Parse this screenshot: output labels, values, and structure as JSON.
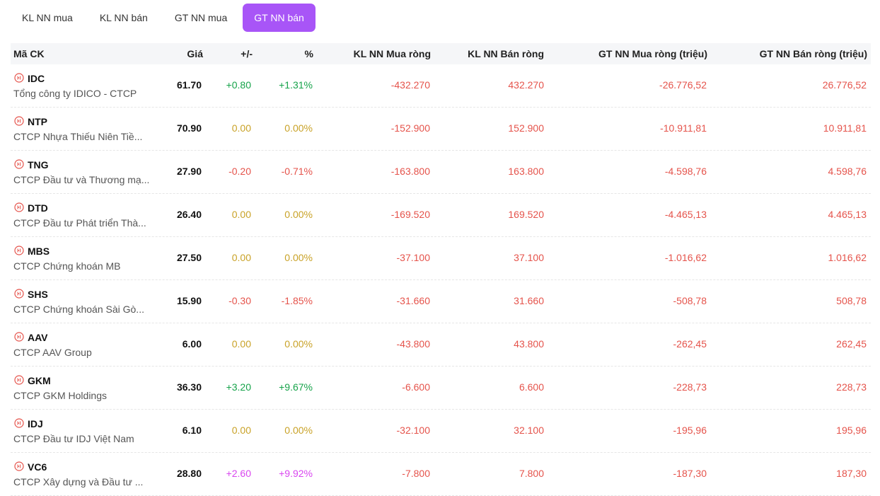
{
  "tabs": [
    {
      "label": "KL NN mua",
      "active": false
    },
    {
      "label": "KL NN bán",
      "active": false
    },
    {
      "label": "GT NN mua",
      "active": false
    },
    {
      "label": "GT NN bán",
      "active": true
    }
  ],
  "columns": {
    "symbol": "Mã CK",
    "price": "Giá",
    "change": "+/-",
    "percent": "%",
    "kl_buy": "KL NN Mua ròng",
    "kl_sell": "KL NN Bán ròng",
    "gt_buy": "GT NN Mua ròng (triệu)",
    "gt_sell": "GT NN Bán ròng (triệu)"
  },
  "colors": {
    "accent": "#a855f7",
    "up": "#16a34a",
    "reference": "#c9a227",
    "down": "#e5534b",
    "ceiling": "#d946ef"
  },
  "rows": [
    {
      "symbol": "IDC",
      "name": "Tổng công ty IDICO - CTCP",
      "price": "61.70",
      "change": "+0.80",
      "percent": "+1.31%",
      "trend": "up",
      "kl_buy": "-432.270",
      "kl_sell": "432.270",
      "gt_buy": "-26.776,52",
      "gt_sell": "26.776,52"
    },
    {
      "symbol": "NTP",
      "name": "CTCP Nhựa Thiếu Niên Tiề...",
      "price": "70.90",
      "change": "0.00",
      "percent": "0.00%",
      "trend": "ref",
      "kl_buy": "-152.900",
      "kl_sell": "152.900",
      "gt_buy": "-10.911,81",
      "gt_sell": "10.911,81"
    },
    {
      "symbol": "TNG",
      "name": "CTCP Đầu tư và Thương mạ...",
      "price": "27.90",
      "change": "-0.20",
      "percent": "-0.71%",
      "trend": "down",
      "kl_buy": "-163.800",
      "kl_sell": "163.800",
      "gt_buy": "-4.598,76",
      "gt_sell": "4.598,76"
    },
    {
      "symbol": "DTD",
      "name": "CTCP Đầu tư Phát triển Thà...",
      "price": "26.40",
      "change": "0.00",
      "percent": "0.00%",
      "trend": "ref",
      "kl_buy": "-169.520",
      "kl_sell": "169.520",
      "gt_buy": "-4.465,13",
      "gt_sell": "4.465,13"
    },
    {
      "symbol": "MBS",
      "name": "CTCP Chứng khoán MB",
      "price": "27.50",
      "change": "0.00",
      "percent": "0.00%",
      "trend": "ref",
      "kl_buy": "-37.100",
      "kl_sell": "37.100",
      "gt_buy": "-1.016,62",
      "gt_sell": "1.016,62"
    },
    {
      "symbol": "SHS",
      "name": "CTCP Chứng khoán Sài Gò...",
      "price": "15.90",
      "change": "-0.30",
      "percent": "-1.85%",
      "trend": "down",
      "kl_buy": "-31.660",
      "kl_sell": "31.660",
      "gt_buy": "-508,78",
      "gt_sell": "508,78"
    },
    {
      "symbol": "AAV",
      "name": "CTCP AAV Group",
      "price": "6.00",
      "change": "0.00",
      "percent": "0.00%",
      "trend": "ref",
      "kl_buy": "-43.800",
      "kl_sell": "43.800",
      "gt_buy": "-262,45",
      "gt_sell": "262,45"
    },
    {
      "symbol": "GKM",
      "name": "CTCP GKM Holdings",
      "price": "36.30",
      "change": "+3.20",
      "percent": "+9.67%",
      "trend": "up",
      "kl_buy": "-6.600",
      "kl_sell": "6.600",
      "gt_buy": "-228,73",
      "gt_sell": "228,73"
    },
    {
      "symbol": "IDJ",
      "name": "CTCP Đầu tư IDJ Việt Nam",
      "price": "6.10",
      "change": "0.00",
      "percent": "0.00%",
      "trend": "ref",
      "kl_buy": "-32.100",
      "kl_sell": "32.100",
      "gt_buy": "-195,96",
      "gt_sell": "195,96"
    },
    {
      "symbol": "VC6",
      "name": "CTCP Xây dựng và Đầu tư ...",
      "price": "28.80",
      "change": "+2.60",
      "percent": "+9.92%",
      "trend": "ceil",
      "kl_buy": "-7.800",
      "kl_sell": "7.800",
      "gt_buy": "-187,30",
      "gt_sell": "187,30"
    }
  ]
}
